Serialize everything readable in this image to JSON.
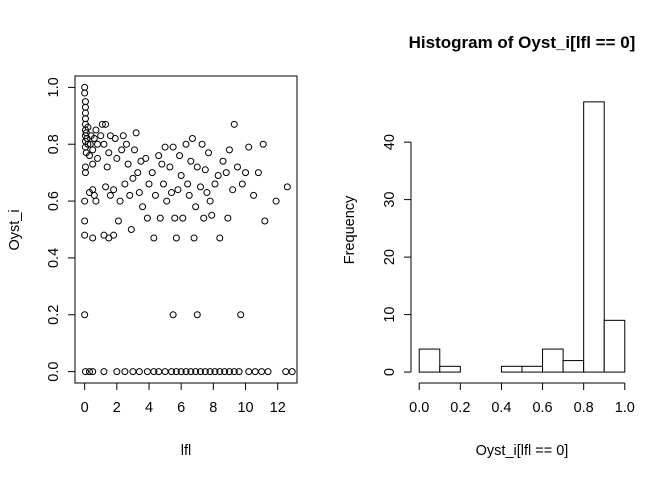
{
  "chart_data": [
    {
      "type": "scatter",
      "title": "",
      "xlabel": "lfl",
      "ylabel": "Oyst_i",
      "xlim": [
        -0.6,
        13.2
      ],
      "ylim": [
        -0.04,
        1.04
      ],
      "xticks": [
        0,
        2,
        4,
        6,
        8,
        10,
        12
      ],
      "yticks": [
        0.0,
        0.2,
        0.4,
        0.6,
        0.8,
        1.0
      ],
      "xtick_labels": [
        "0",
        "2",
        "4",
        "6",
        "8",
        "10",
        "12"
      ],
      "ytick_labels": [
        "0.0",
        "0.2",
        "0.4",
        "0.6",
        "0.8",
        "1.0"
      ],
      "marker": "open-circle",
      "grid": false,
      "points": [
        [
          0.0,
          1.0
        ],
        [
          0.0,
          0.98
        ],
        [
          0.05,
          0.95
        ],
        [
          0.05,
          0.93
        ],
        [
          0.05,
          0.91
        ],
        [
          0.05,
          0.89
        ],
        [
          0.05,
          0.87
        ],
        [
          0.05,
          0.85
        ],
        [
          0.05,
          0.83
        ],
        [
          0.05,
          0.81
        ],
        [
          0.05,
          0.79
        ],
        [
          0.1,
          0.77
        ],
        [
          0.05,
          0.72
        ],
        [
          0.05,
          0.7
        ],
        [
          0.0,
          0.6
        ],
        [
          0.0,
          0.53
        ],
        [
          0.0,
          0.48
        ],
        [
          0.0,
          0.2
        ],
        [
          0.05,
          0.0
        ],
        [
          0.3,
          0.0
        ],
        [
          0.5,
          0.0
        ],
        [
          0.1,
          0.84
        ],
        [
          0.15,
          0.82
        ],
        [
          0.2,
          0.86
        ],
        [
          0.2,
          0.8
        ],
        [
          0.3,
          0.76
        ],
        [
          0.35,
          0.8
        ],
        [
          0.4,
          0.83
        ],
        [
          0.5,
          0.78
        ],
        [
          0.5,
          0.73
        ],
        [
          0.6,
          0.82
        ],
        [
          0.7,
          0.85
        ],
        [
          0.8,
          0.8
        ],
        [
          0.8,
          0.75
        ],
        [
          0.3,
          0.63
        ],
        [
          0.5,
          0.64
        ],
        [
          0.6,
          0.62
        ],
        [
          0.7,
          0.6
        ],
        [
          0.5,
          0.47
        ],
        [
          1.0,
          0.83
        ],
        [
          1.1,
          0.87
        ],
        [
          1.2,
          0.8
        ],
        [
          1.3,
          0.87
        ],
        [
          1.4,
          0.72
        ],
        [
          1.5,
          0.77
        ],
        [
          1.6,
          0.83
        ],
        [
          1.2,
          0.48
        ],
        [
          1.5,
          0.47
        ],
        [
          1.8,
          0.48
        ],
        [
          1.3,
          0.65
        ],
        [
          1.6,
          0.62
        ],
        [
          1.8,
          0.64
        ],
        [
          1.9,
          0.82
        ],
        [
          2.0,
          0.75
        ],
        [
          2.1,
          0.53
        ],
        [
          2.2,
          0.6
        ],
        [
          2.3,
          0.78
        ],
        [
          2.4,
          0.83
        ],
        [
          2.5,
          0.66
        ],
        [
          2.6,
          0.8
        ],
        [
          2.7,
          0.73
        ],
        [
          2.8,
          0.62
        ],
        [
          2.9,
          0.5
        ],
        [
          3.0,
          0.68
        ],
        [
          3.1,
          0.78
        ],
        [
          3.2,
          0.84
        ],
        [
          3.3,
          0.7
        ],
        [
          3.4,
          0.63
        ],
        [
          3.5,
          0.74
        ],
        [
          3.6,
          0.58
        ],
        [
          3.8,
          0.75
        ],
        [
          3.9,
          0.54
        ],
        [
          4.0,
          0.66
        ],
        [
          4.2,
          0.7
        ],
        [
          4.3,
          0.47
        ],
        [
          4.4,
          0.62
        ],
        [
          4.6,
          0.76
        ],
        [
          4.7,
          0.54
        ],
        [
          4.8,
          0.73
        ],
        [
          4.9,
          0.66
        ],
        [
          5.0,
          0.79
        ],
        [
          5.1,
          0.6
        ],
        [
          5.3,
          0.72
        ],
        [
          5.4,
          0.63
        ],
        [
          5.5,
          0.79
        ],
        [
          5.6,
          0.54
        ],
        [
          5.7,
          0.47
        ],
        [
          5.5,
          0.2
        ],
        [
          5.8,
          0.64
        ],
        [
          5.9,
          0.76
        ],
        [
          6.0,
          0.69
        ],
        [
          6.1,
          0.54
        ],
        [
          6.3,
          0.8
        ],
        [
          6.4,
          0.66
        ],
        [
          6.5,
          0.62
        ],
        [
          6.6,
          0.74
        ],
        [
          6.7,
          0.82
        ],
        [
          6.8,
          0.47
        ],
        [
          6.9,
          0.58
        ],
        [
          7.0,
          0.2
        ],
        [
          7.0,
          0.72
        ],
        [
          7.2,
          0.65
        ],
        [
          7.3,
          0.8
        ],
        [
          7.4,
          0.54
        ],
        [
          7.5,
          0.71
        ],
        [
          7.6,
          0.63
        ],
        [
          7.7,
          0.77
        ],
        [
          7.8,
          0.6
        ],
        [
          7.9,
          0.55
        ],
        [
          8.1,
          0.66
        ],
        [
          8.3,
          0.69
        ],
        [
          8.4,
          0.47
        ],
        [
          8.6,
          0.74
        ],
        [
          8.8,
          0.7
        ],
        [
          8.9,
          0.54
        ],
        [
          9.0,
          0.78
        ],
        [
          9.2,
          0.64
        ],
        [
          9.3,
          0.87
        ],
        [
          9.5,
          0.72
        ],
        [
          9.7,
          0.2
        ],
        [
          9.8,
          0.66
        ],
        [
          10.0,
          0.7
        ],
        [
          10.2,
          0.79
        ],
        [
          10.5,
          0.62
        ],
        [
          10.8,
          0.7
        ],
        [
          11.2,
          0.53
        ],
        [
          11.1,
          0.8
        ],
        [
          11.9,
          0.6
        ],
        [
          12.6,
          0.65
        ],
        [
          1.2,
          0.0
        ],
        [
          2.0,
          0.0
        ],
        [
          2.5,
          0.0
        ],
        [
          3.0,
          0.0
        ],
        [
          3.4,
          0.0
        ],
        [
          3.9,
          0.0
        ],
        [
          4.3,
          0.0
        ],
        [
          4.6,
          0.0
        ],
        [
          5.0,
          0.0
        ],
        [
          5.4,
          0.0
        ],
        [
          5.7,
          0.0
        ],
        [
          6.0,
          0.0
        ],
        [
          6.3,
          0.0
        ],
        [
          6.6,
          0.0
        ],
        [
          6.9,
          0.0
        ],
        [
          7.2,
          0.0
        ],
        [
          7.5,
          0.0
        ],
        [
          7.8,
          0.0
        ],
        [
          8.1,
          0.0
        ],
        [
          8.4,
          0.0
        ],
        [
          8.7,
          0.0
        ],
        [
          9.0,
          0.0
        ],
        [
          9.3,
          0.0
        ],
        [
          9.6,
          0.0
        ],
        [
          10.2,
          0.0
        ],
        [
          10.6,
          0.0
        ],
        [
          11.0,
          0.0
        ],
        [
          11.4,
          0.0
        ],
        [
          12.5,
          0.0
        ],
        [
          12.9,
          0.0
        ]
      ]
    },
    {
      "type": "bar",
      "subtype": "histogram",
      "title": "Histogram of Oyst_i[lfl == 0]",
      "xlabel": "Oyst_i[lfl == 0]",
      "ylabel": "Frequency",
      "xlim": [
        -0.04,
        1.04
      ],
      "ylim": [
        -1.9,
        51.5
      ],
      "xticks": [
        0.0,
        0.2,
        0.4,
        0.6,
        0.8,
        1.0
      ],
      "yticks": [
        0,
        10,
        20,
        30,
        40
      ],
      "xtick_labels": [
        "0.0",
        "0.2",
        "0.4",
        "0.6",
        "0.8",
        "1.0"
      ],
      "ytick_labels": [
        "0",
        "10",
        "20",
        "30",
        "40"
      ],
      "bin_edges": [
        0.0,
        0.1,
        0.2,
        0.3,
        0.4,
        0.5,
        0.6,
        0.7,
        0.8,
        0.9,
        1.0
      ],
      "values": [
        4,
        1,
        0,
        0,
        1,
        1,
        4,
        2,
        47,
        9
      ],
      "grid": false
    }
  ]
}
